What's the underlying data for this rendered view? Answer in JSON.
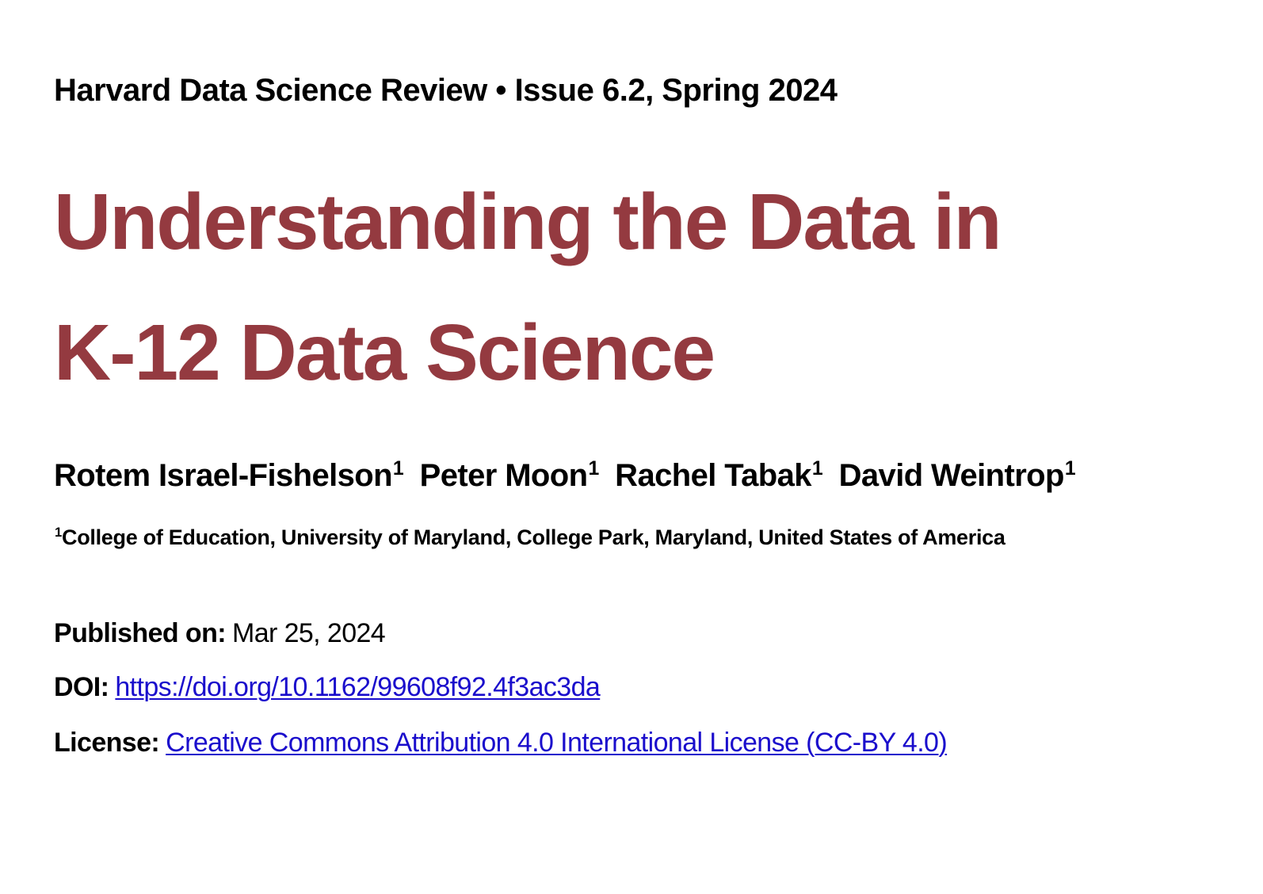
{
  "header": {
    "journal": "Harvard Data Science Review",
    "separator": "•",
    "issue": "Issue 6.2, Spring 2024"
  },
  "title": {
    "line1": "Understanding the Data in",
    "line2": "K-12 Data Science"
  },
  "authors": [
    {
      "name": "Rotem Israel-Fishelson",
      "affil": "1"
    },
    {
      "name": "Peter Moon",
      "affil": "1"
    },
    {
      "name": "Rachel Tabak",
      "affil": "1"
    },
    {
      "name": "David Weintrop",
      "affil": "1"
    }
  ],
  "affiliation": {
    "marker": "1",
    "text": "College of Education, University of Maryland, College Park, Maryland, United States of America"
  },
  "meta": {
    "published_label": "Published on:",
    "published_value": "Mar 25, 2024",
    "doi_label": "DOI:",
    "doi_value": "https://doi.org/10.1162/99608f92.4f3ac3da",
    "license_label": "License:",
    "license_value": "Creative Commons Attribution 4.0 International License (CC-BY 4.0)"
  },
  "colors": {
    "title": "#943A40",
    "link": "#1a0dcc"
  }
}
